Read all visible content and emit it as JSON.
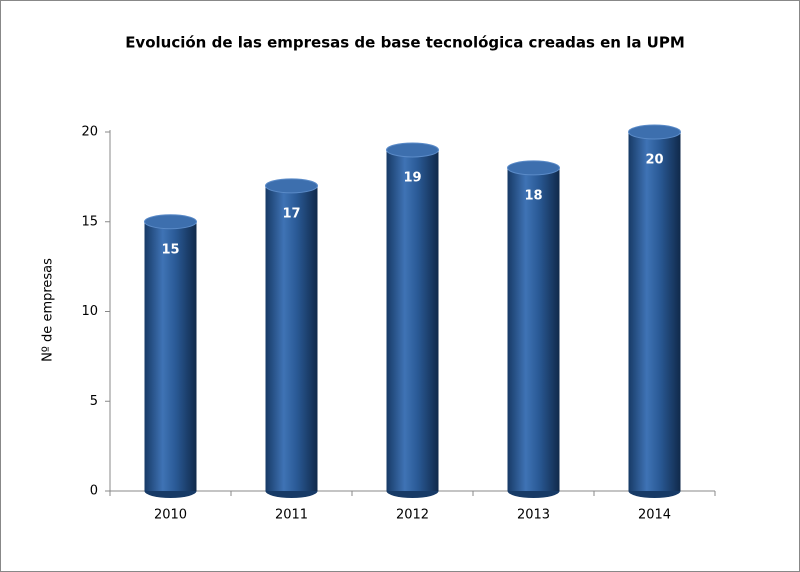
{
  "chart_data": {
    "type": "bar",
    "title": "Evolución de las empresas de base tecnológica creadas en la UPM",
    "y_label": "Nº de empresas",
    "categories": [
      "2010",
      "2011",
      "2012",
      "2013",
      "2014"
    ],
    "values": [
      15,
      17,
      19,
      18,
      20
    ],
    "color": "#2a5a96",
    "ylim": [
      0,
      20
    ],
    "yticks": [
      0,
      5,
      10,
      15,
      20
    ],
    "grid": false
  }
}
